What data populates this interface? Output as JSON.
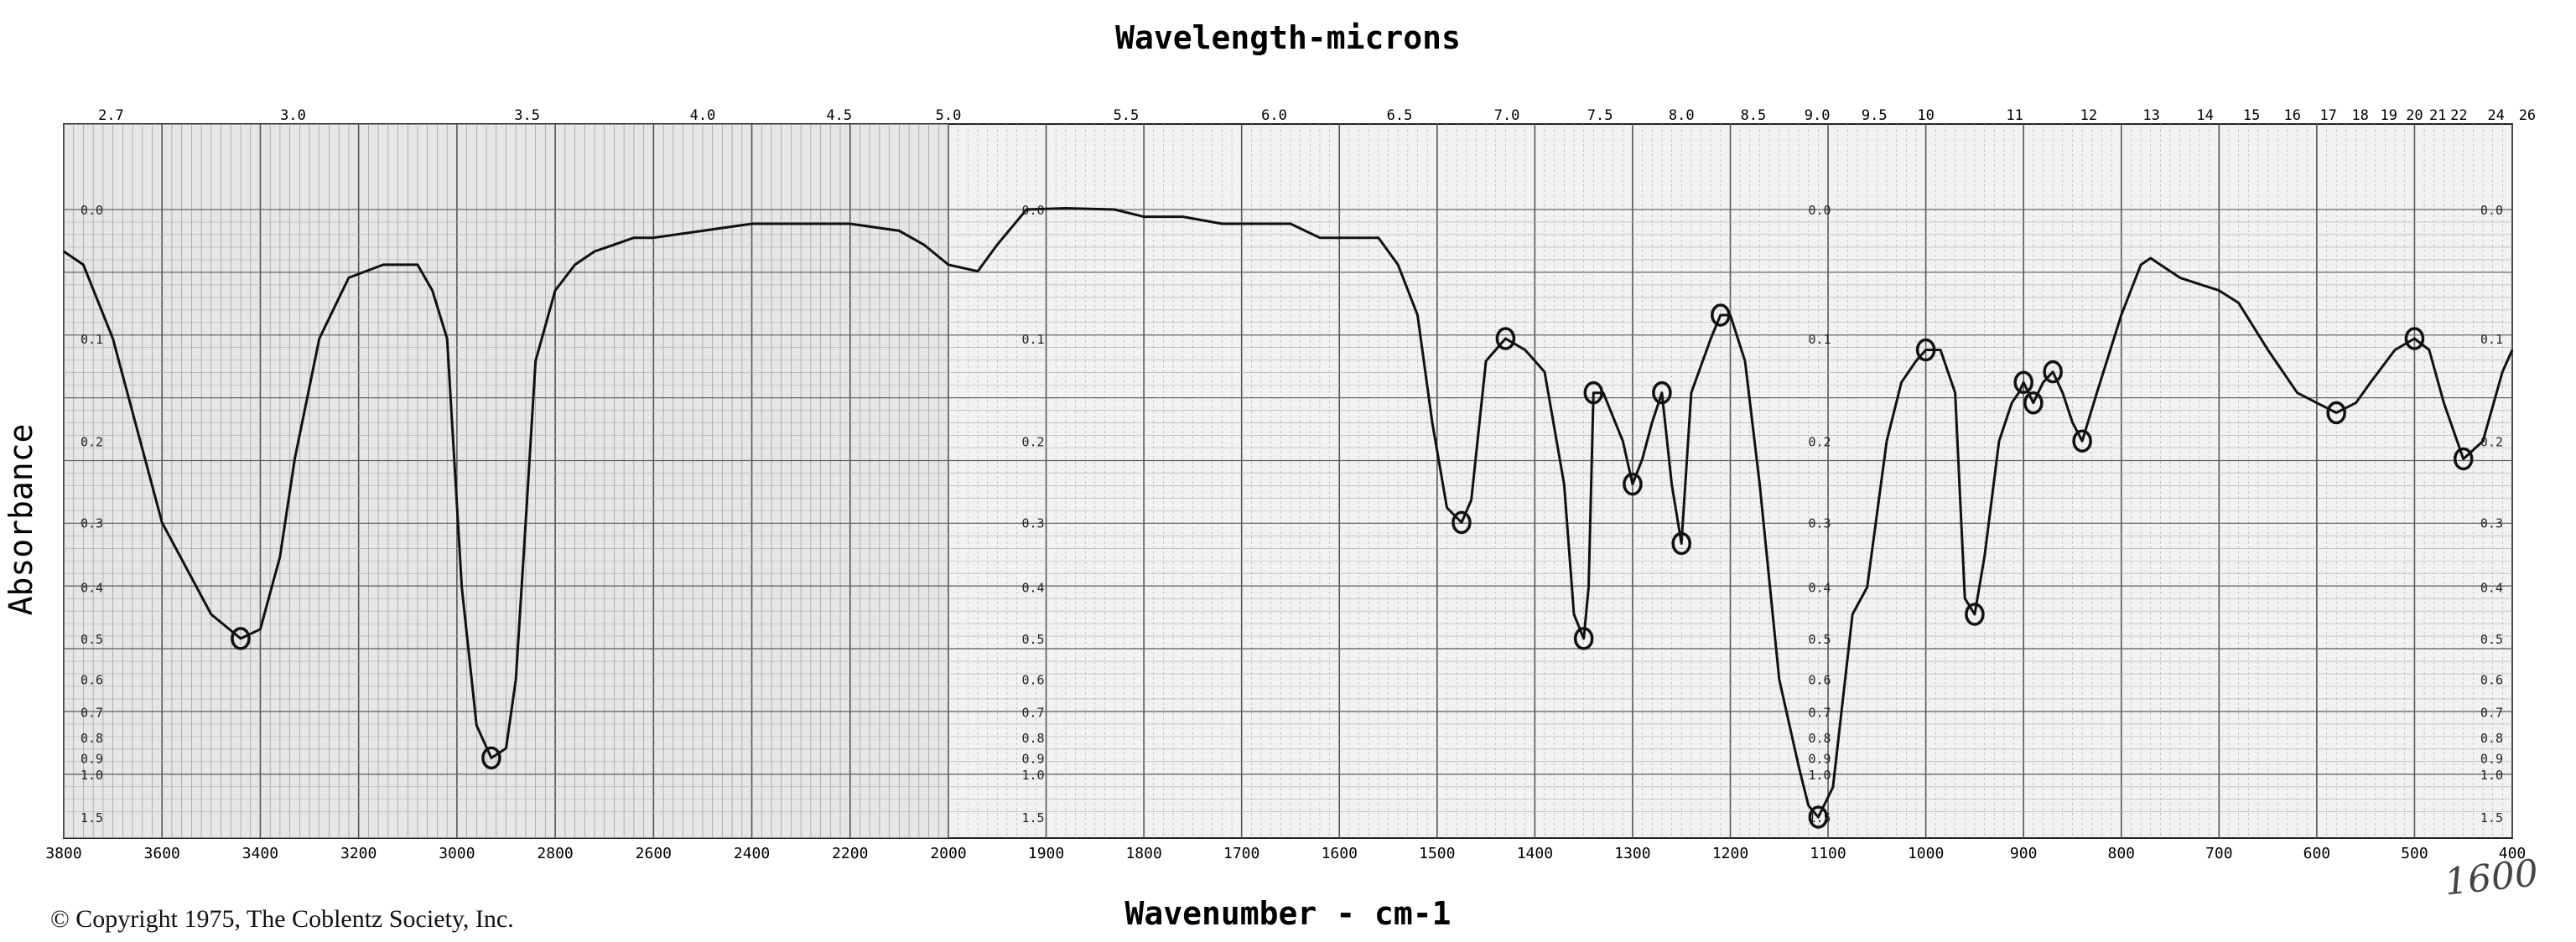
{
  "chart_data": {
    "type": "line",
    "title": "Wavelength-microns",
    "xlabel": "Wavenumber - cm-1",
    "ylabel": "Absorbance",
    "x_ticks_bottom": [
      3800,
      3600,
      3400,
      3200,
      3000,
      2800,
      2600,
      2400,
      2200,
      2000,
      1900,
      1800,
      1700,
      1600,
      1500,
      1400,
      1300,
      1200,
      1100,
      1000,
      900,
      800,
      700,
      600,
      500,
      400
    ],
    "x_ticks_top": [
      "2.7",
      "3.0",
      "3.5",
      "4.0",
      "4.5",
      "5.0",
      "5.5",
      "6.0",
      "6.5",
      "7.0",
      "7.5",
      "8.0",
      "8.5",
      "9.0",
      "9.5",
      "10",
      "11",
      "12",
      "13",
      "14",
      "15",
      "16",
      "17",
      "18",
      "19",
      "20",
      "21",
      "22",
      "24",
      "26"
    ],
    "y_ticks": [
      "0.0",
      "0.1",
      "0.2",
      "0.3",
      "0.4",
      "0.5",
      "0.6",
      "0.7",
      "0.8",
      "0.9",
      "1.0",
      "1.5"
    ],
    "grid": true,
    "series": [
      {
        "x": [
          3800,
          3760,
          3700,
          3600,
          3500,
          3440,
          3400,
          3360,
          3330,
          3280,
          3220,
          3150,
          3080,
          3050,
          3020,
          2990,
          2960,
          2930,
          2900,
          2880,
          2860,
          2840,
          2800,
          2760,
          2720,
          2680,
          2640,
          2600,
          2500,
          2400,
          2300,
          2200,
          2100,
          2050,
          2000,
          1970,
          1950,
          1920,
          1880,
          1830,
          1800,
          1760,
          1720,
          1680,
          1650,
          1620,
          1560,
          1540,
          1520,
          1505,
          1490,
          1475,
          1465,
          1450,
          1430,
          1410,
          1390,
          1370,
          1360,
          1350,
          1345,
          1340,
          1330,
          1310,
          1300,
          1290,
          1280,
          1270,
          1260,
          1250,
          1240,
          1220,
          1210,
          1200,
          1185,
          1170,
          1150,
          1130,
          1120,
          1110,
          1095,
          1075,
          1060,
          1040,
          1025,
          1010,
          1000,
          985,
          970,
          960,
          950,
          940,
          925,
          912,
          905,
          900,
          890,
          880,
          870,
          860,
          850,
          840,
          825,
          800,
          780,
          770,
          760,
          740,
          720,
          700,
          680,
          650,
          620,
          600,
          580,
          560,
          545,
          520,
          500,
          485,
          470,
          450,
          430,
          410,
          400
        ],
        "y": [
          0.03,
          0.04,
          0.1,
          0.3,
          0.45,
          0.5,
          0.48,
          0.35,
          0.22,
          0.1,
          0.05,
          0.04,
          0.04,
          0.06,
          0.1,
          0.4,
          0.75,
          0.9,
          0.85,
          0.6,
          0.3,
          0.12,
          0.06,
          0.04,
          0.03,
          0.025,
          0.02,
          0.02,
          0.015,
          0.01,
          0.01,
          0.01,
          0.015,
          0.025,
          0.04,
          0.045,
          0.025,
          0.0,
          -0.005,
          0.0,
          0.005,
          0.005,
          0.01,
          0.01,
          0.01,
          0.02,
          0.02,
          0.04,
          0.08,
          0.18,
          0.28,
          0.3,
          0.27,
          0.12,
          0.1,
          0.11,
          0.13,
          0.25,
          0.45,
          0.5,
          0.4,
          0.15,
          0.15,
          0.2,
          0.25,
          0.22,
          0.18,
          0.15,
          0.25,
          0.33,
          0.15,
          0.1,
          0.08,
          0.08,
          0.12,
          0.25,
          0.6,
          0.95,
          1.3,
          1.5,
          1.1,
          0.45,
          0.4,
          0.2,
          0.14,
          0.12,
          0.11,
          0.11,
          0.15,
          0.42,
          0.45,
          0.35,
          0.2,
          0.16,
          0.15,
          0.14,
          0.16,
          0.14,
          0.13,
          0.15,
          0.18,
          0.2,
          0.15,
          0.08,
          0.04,
          0.035,
          0.04,
          0.05,
          0.055,
          0.06,
          0.07,
          0.11,
          0.15,
          0.16,
          0.17,
          0.16,
          0.14,
          0.11,
          0.1,
          0.11,
          0.16,
          0.22,
          0.2,
          0.13,
          0.11
        ]
      }
    ]
  },
  "copyright": "© Copyright 1975, The Coblentz Society, Inc.",
  "handwritten_note": "1600"
}
